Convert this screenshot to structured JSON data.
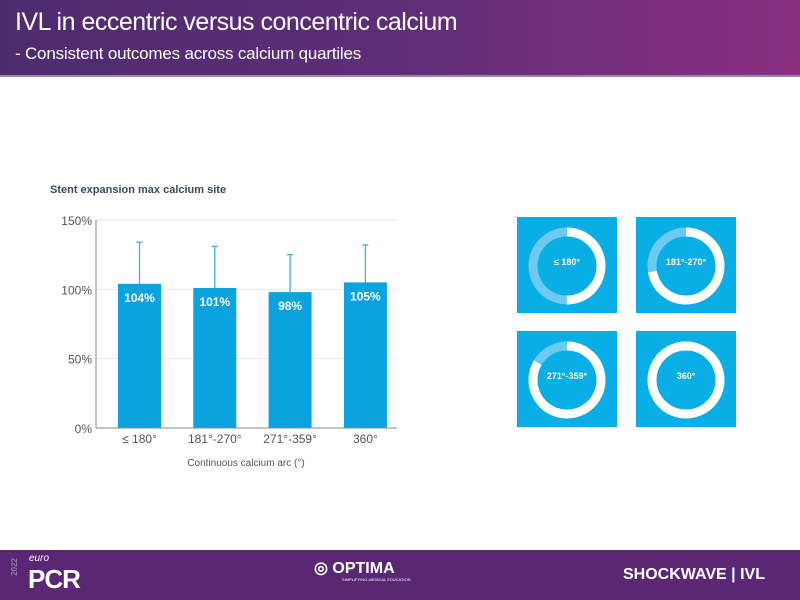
{
  "header": {
    "title": "IVL in eccentric versus concentric calcium",
    "subtitle": "- Consistent outcomes across calcium quartiles"
  },
  "chart_data": {
    "type": "bar",
    "title": "Stent expansion  max calcium site",
    "xlabel": "Continuous calcium arc (°)",
    "ylabel": "",
    "ylim": [
      0,
      150
    ],
    "yticks": [
      "0%",
      "50%",
      "100%",
      "150%"
    ],
    "categories": [
      "≤ 180°",
      "181°-270°",
      "271°-359°",
      "360°"
    ],
    "values": [
      104,
      101,
      98,
      105
    ],
    "value_labels": [
      "104%",
      "101%",
      "98%",
      "105%"
    ],
    "error_upper": [
      134,
      131,
      125,
      132
    ],
    "color": "#0aa3e0",
    "grid": true
  },
  "donuts": [
    {
      "label": "≤ 180°",
      "arc_degrees": 180
    },
    {
      "label": "181°-270°",
      "arc_degrees": 260
    },
    {
      "label": "271°-359°",
      "arc_degrees": 300
    },
    {
      "label": "360°",
      "arc_degrees": 360
    }
  ],
  "footer": {
    "left_logo": "euro PCR 2022",
    "center_logo": "OPTIMA",
    "center_tagline": "SIMPLIFYING MEDICAL EDUCATION",
    "right_logo": "SHOCKWAVE | IVL"
  }
}
